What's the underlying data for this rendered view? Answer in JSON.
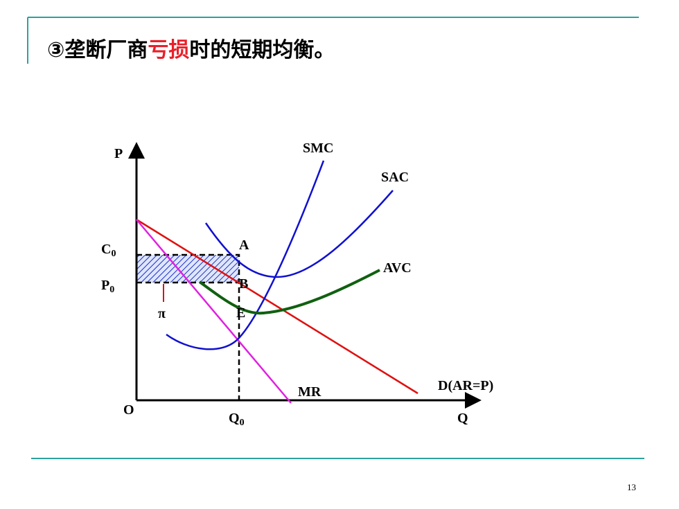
{
  "title": {
    "before": "③垄断厂商",
    "highlight": "亏损",
    "after": "时的短期均衡。"
  },
  "labels": {
    "p_axis": "P",
    "q_axis": "Q",
    "origin": "O",
    "smc": "SMC",
    "sac": "SAC",
    "avc": "AVC",
    "mr": "MR",
    "demand": "D(AR=P)",
    "a": "A",
    "b": "B",
    "e": "E",
    "pi": "π",
    "c0": {
      "main": "C",
      "sub": "0"
    },
    "p0": {
      "main": "P",
      "sub": "0"
    },
    "q0": {
      "main": "Q",
      "sub": "0"
    }
  },
  "page_number": "13"
}
